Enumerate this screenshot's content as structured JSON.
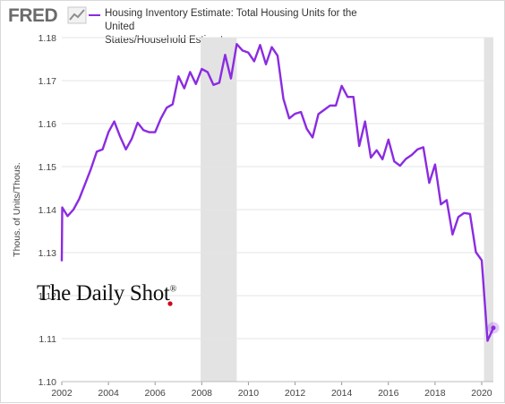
{
  "header": {
    "logo": "FRED",
    "legend_line1": "Housing Inventory Estimate: Total Housing Units for the United",
    "legend_line2": "States/Household Estimates"
  },
  "watermark": {
    "text": "The Daily Shot",
    "mark": "®"
  },
  "colors": {
    "series": "#8b2be2",
    "recession": "#e3e3e3",
    "grid": "#e6e6e6"
  },
  "chart_data": {
    "type": "line",
    "title": "Housing Inventory Estimate: Total Housing Units for the United States/Household Estimates",
    "xlabel": "",
    "ylabel": "Thous. of Units/Thous.",
    "xlim": [
      2002,
      2020.5
    ],
    "ylim": [
      1.1,
      1.18
    ],
    "x_ticks": [
      "2002",
      "2004",
      "2006",
      "2008",
      "2010",
      "2012",
      "2014",
      "2016",
      "2018",
      "2020"
    ],
    "y_ticks": [
      "1.10",
      "1.11",
      "1.12",
      "1.13",
      "1.14",
      "1.15",
      "1.16",
      "1.17",
      "1.18"
    ],
    "recessions": [
      [
        2007.95,
        2009.5
      ],
      [
        2020.1,
        2020.5
      ]
    ],
    "grid": true,
    "series": [
      {
        "x": [
          2002.0,
          2002.02,
          2002.25,
          2002.5,
          2002.75,
          2003.0,
          2003.25,
          2003.5,
          2003.75,
          2004.0,
          2004.25,
          2004.5,
          2004.75,
          2005.0,
          2005.25,
          2005.5,
          2005.75,
          2006.0,
          2006.25,
          2006.5,
          2006.75,
          2007.0,
          2007.25,
          2007.5,
          2007.75,
          2008.0,
          2008.25,
          2008.5,
          2008.75,
          2009.0,
          2009.25,
          2009.5,
          2009.75,
          2010.0,
          2010.25,
          2010.5,
          2010.75,
          2011.0,
          2011.25,
          2011.5,
          2011.75,
          2012.0,
          2012.25,
          2012.5,
          2012.75,
          2013.0,
          2013.25,
          2013.5,
          2013.75,
          2014.0,
          2014.25,
          2014.5,
          2014.75,
          2015.0,
          2015.25,
          2015.5,
          2015.75,
          2016.0,
          2016.25,
          2016.5,
          2016.75,
          2017.0,
          2017.25,
          2017.5,
          2017.75,
          2018.0,
          2018.25,
          2018.5,
          2018.75,
          2019.0,
          2019.25,
          2019.5,
          2019.75,
          2020.0,
          2020.25,
          2020.5
        ],
        "y": [
          1.128,
          1.1405,
          1.1385,
          1.14,
          1.1425,
          1.146,
          1.1495,
          1.1535,
          1.154,
          1.158,
          1.1605,
          1.157,
          1.154,
          1.1565,
          1.1602,
          1.1585,
          1.158,
          1.158,
          1.1612,
          1.1637,
          1.1645,
          1.171,
          1.1682,
          1.172,
          1.1692,
          1.1727,
          1.172,
          1.169,
          1.1695,
          1.176,
          1.1705,
          1.1785,
          1.177,
          1.1765,
          1.1745,
          1.1783,
          1.1738,
          1.1778,
          1.1758,
          1.1658,
          1.1612,
          1.1623,
          1.1627,
          1.1588,
          1.1568,
          1.1622,
          1.1632,
          1.1642,
          1.1642,
          1.1688,
          1.1662,
          1.1662,
          1.1548,
          1.1605,
          1.1521,
          1.1538,
          1.1517,
          1.1563,
          1.1512,
          1.1502,
          1.1518,
          1.1527,
          1.154,
          1.1545,
          1.1462,
          1.1505,
          1.1412,
          1.1422,
          1.1342,
          1.1383,
          1.1392,
          1.139,
          1.1301,
          1.1282,
          1.1095,
          1.1125
        ]
      }
    ]
  }
}
